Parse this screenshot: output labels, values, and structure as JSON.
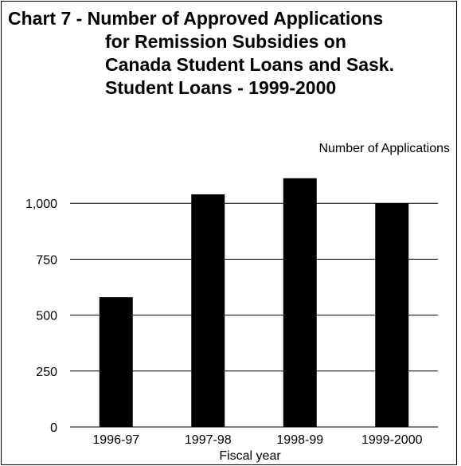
{
  "chart_data": {
    "type": "bar",
    "title_lines": [
      "Chart 7 - Number of Approved Applications",
      "for Remission Subsidies on",
      "Canada Student Loans and Sask.",
      "Student Loans - 1999-2000"
    ],
    "ylabel": "Number of Applications",
    "xlabel": "Fiscal year",
    "categories": [
      "1996-97",
      "1997-98",
      "1998-99",
      "1999-2000"
    ],
    "values": [
      580,
      1040,
      1112,
      1000
    ],
    "ylim": [
      0,
      1250
    ],
    "yticks": [
      0,
      250,
      500,
      750,
      1000
    ],
    "ytick_labels": [
      "0",
      "250",
      "500",
      "750",
      "1,000"
    ],
    "grid": true,
    "bar_color": "#000000"
  }
}
